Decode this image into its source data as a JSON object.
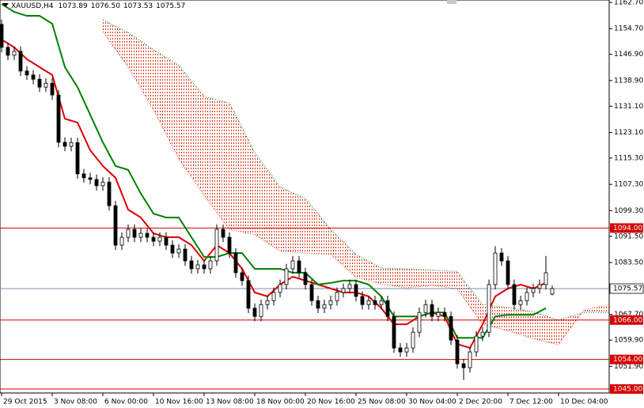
{
  "chart_data": {
    "type": "candlestick",
    "symbol": "XAUUSD,H4",
    "header_values": [
      "1073.89",
      "1076.50",
      "1073.53",
      "1075.57"
    ],
    "open": [
      1156,
      1149,
      1146.6,
      1147.8,
      1141.8,
      1140.6,
      1139.3,
      1136.9,
      1138.1,
      1134.5,
      1120.1,
      1118.9,
      1120,
      1110.5,
      1109.3,
      1108.8,
      1106.9,
      1108,
      1100.8,
      1088.8,
      1091.2,
      1093.6,
      1091.2,
      1092.4,
      1091.2,
      1090,
      1091.2,
      1088.8,
      1086.4,
      1087.6,
      1084,
      1081.6,
      1082.8,
      1081.6,
      1084,
      1093.6,
      1091.2,
      1086.4,
      1080.4,
      1078,
      1069.6,
      1067.1,
      1070.7,
      1071.9,
      1074.4,
      1076.8,
      1081.6,
      1084,
      1080.4,
      1076.8,
      1071.9,
      1069.6,
      1070.7,
      1071.9,
      1074.4,
      1075.6,
      1076.8,
      1073.2,
      1070.7,
      1071.9,
      1070.7,
      1071.9,
      1067.1,
      1057.5,
      1056.3,
      1057.5,
      1062.3,
      1068.3,
      1070.7,
      1067.1,
      1068.3,
      1067.1,
      1059.9,
      1052.7,
      1051.5,
      1056.3,
      1061.1,
      1062.3,
      1076.8,
      1086.4,
      1084,
      1076.8,
      1070.7,
      1071.9,
      1074.4,
      1075.6,
      1076.8,
      1073.89
    ],
    "high": [
      1157.5,
      1150.5,
      1149.3,
      1149.3,
      1143.3,
      1142.1,
      1140.8,
      1139.6,
      1139.6,
      1136,
      1121.6,
      1121.5,
      1121.5,
      1112,
      1110.8,
      1110.3,
      1109.5,
      1109.5,
      1102.3,
      1092.7,
      1095.1,
      1095.1,
      1093.9,
      1093.9,
      1092.7,
      1092.7,
      1092.7,
      1090.3,
      1089.1,
      1089.1,
      1085.5,
      1084.3,
      1084.3,
      1085.5,
      1095.1,
      1095.1,
      1092.7,
      1087.9,
      1081.9,
      1079.5,
      1071.1,
      1072.2,
      1073.4,
      1075.9,
      1078.3,
      1083.1,
      1085.5,
      1085.5,
      1081.9,
      1078.3,
      1073.4,
      1072.2,
      1073.4,
      1075.9,
      1077.1,
      1078.3,
      1078.3,
      1074.7,
      1073.4,
      1073.4,
      1073.4,
      1073.4,
      1068.6,
      1059,
      1059,
      1063.8,
      1069.8,
      1072.2,
      1072.2,
      1069.8,
      1069.8,
      1068.6,
      1061.4,
      1054.2,
      1057.8,
      1062.6,
      1063.8,
      1078.3,
      1088.5,
      1087.9,
      1085.5,
      1078.3,
      1073.4,
      1075.9,
      1077.1,
      1078.3,
      1085.5,
      1076.5
    ],
    "low": [
      1147.5,
      1145.1,
      1145.1,
      1140.3,
      1139.1,
      1137.8,
      1135.4,
      1135.4,
      1133,
      1118.6,
      1117.4,
      1117.4,
      1109,
      1107.8,
      1107.3,
      1105.4,
      1105.4,
      1099.3,
      1087.3,
      1087.3,
      1089.7,
      1089.7,
      1089.7,
      1089.7,
      1088.5,
      1088.5,
      1087.3,
      1084.9,
      1084.9,
      1082.5,
      1080.1,
      1080.1,
      1080.1,
      1080.1,
      1082.5,
      1089.7,
      1084.9,
      1078.9,
      1076.5,
      1068.1,
      1065.6,
      1065.6,
      1069.2,
      1070.4,
      1072.9,
      1075.3,
      1080.1,
      1078.9,
      1075.3,
      1070.4,
      1068.1,
      1068.1,
      1069.2,
      1070.4,
      1072.9,
      1074.1,
      1071.7,
      1069.2,
      1069.2,
      1069.2,
      1069.2,
      1065.6,
      1056,
      1054.8,
      1054.8,
      1056,
      1060.8,
      1066.8,
      1065.6,
      1065.6,
      1065.6,
      1058.4,
      1051.2,
      1047.8,
      1050,
      1054.8,
      1059.6,
      1060.8,
      1075.3,
      1082.5,
      1075.3,
      1069.2,
      1069.2,
      1070.4,
      1072.9,
      1074.1,
      1075.3,
      1073.53
    ],
    "close": [
      1149,
      1146.6,
      1147.8,
      1141.8,
      1140.6,
      1139.3,
      1136.9,
      1138.1,
      1134.5,
      1120.1,
      1118.9,
      1120,
      1110.5,
      1109.3,
      1108.8,
      1106.9,
      1108,
      1100.8,
      1088.8,
      1091.2,
      1093.6,
      1091.2,
      1092.4,
      1091.2,
      1090,
      1091.2,
      1088.8,
      1086.4,
      1087.6,
      1084,
      1081.6,
      1082.8,
      1081.6,
      1084,
      1093.6,
      1091.2,
      1086.4,
      1080.4,
      1078,
      1069.6,
      1067.1,
      1070.7,
      1071.9,
      1074.4,
      1076.8,
      1081.6,
      1084,
      1080.4,
      1076.8,
      1071.9,
      1069.6,
      1070.7,
      1071.9,
      1074.4,
      1075.6,
      1076.8,
      1073.2,
      1070.7,
      1071.9,
      1070.7,
      1071.9,
      1067.1,
      1057.5,
      1056.3,
      1057.5,
      1062.3,
      1068.3,
      1070.7,
      1067.1,
      1068.3,
      1067.1,
      1059.9,
      1052.7,
      1051.5,
      1056.3,
      1061.1,
      1062.3,
      1076.8,
      1086.4,
      1084,
      1076.8,
      1070.7,
      1071.9,
      1074.4,
      1075.6,
      1076.8,
      1080.4,
      1075.57
    ],
    "up_color": "#ffffff",
    "down_color": "#000000",
    "wick_color": "#000000",
    "lines": [
      {
        "color": "#e00000",
        "x": [
          0,
          2,
          4,
          6,
          8,
          10,
          12,
          14,
          16,
          18,
          20,
          22,
          24,
          26,
          28,
          30,
          32,
          34,
          36,
          38,
          40,
          42,
          44,
          46,
          48,
          50,
          52,
          54,
          56,
          58,
          60,
          62,
          64,
          66,
          68,
          70,
          72,
          74,
          76,
          78,
          80,
          82,
          84,
          86
        ],
        "values": [
          1151.4,
          1149,
          1145.4,
          1143,
          1140.6,
          1127.3,
          1126.1,
          1117.7,
          1112.9,
          1109.3,
          1099.6,
          1097.2,
          1092.4,
          1091.2,
          1091.2,
          1088.8,
          1084,
          1088.8,
          1086.4,
          1081.6,
          1074.4,
          1073.2,
          1076.8,
          1079.2,
          1078,
          1076.8,
          1075.6,
          1074.4,
          1074.4,
          1073.2,
          1069.6,
          1064.7,
          1064.7,
          1067.1,
          1068.3,
          1067.1,
          1058.7,
          1057.5,
          1064.7,
          1073.2,
          1075.6,
          1076.8,
          1075.6,
          1077.3
        ]
      },
      {
        "color": "#008000",
        "x": [
          0,
          2,
          4,
          6,
          8,
          10,
          12,
          14,
          16,
          18,
          20,
          22,
          24,
          26,
          28,
          30,
          32,
          34,
          36,
          38,
          40,
          42,
          44,
          46,
          48,
          50,
          52,
          54,
          56,
          58,
          60,
          62,
          64,
          66,
          68,
          70,
          72,
          74,
          76,
          78,
          80,
          82,
          84,
          86
        ],
        "values": [
          1162.2,
          1159.8,
          1158.6,
          1158.6,
          1156.2,
          1143,
          1136.9,
          1128.5,
          1120.1,
          1112.9,
          1111.7,
          1104.5,
          1098.4,
          1097.2,
          1097.2,
          1091.2,
          1085.2,
          1085.2,
          1086.4,
          1086.4,
          1081.6,
          1081.6,
          1081.6,
          1080.4,
          1080.4,
          1076.8,
          1077.3,
          1078,
          1078,
          1076.8,
          1073.2,
          1067.1,
          1067.1,
          1067.1,
          1068.3,
          1068.3,
          1060.6,
          1060.6,
          1060.6,
          1067.1,
          1067.6,
          1067.6,
          1067.6,
          1069.6
        ]
      }
    ],
    "cloud": {
      "x": [
        16,
        20,
        24,
        28,
        32,
        36,
        40,
        44,
        48,
        52,
        56,
        60,
        64,
        68,
        72,
        76,
        80,
        84,
        88,
        92,
        96
      ],
      "span_a": [
        1153.8,
        1143,
        1130,
        1115,
        1104,
        1093.6,
        1092,
        1087,
        1086.4,
        1086,
        1079,
        1077,
        1075.8,
        1076.6,
        1075.5,
        1064.7,
        1062.8,
        1060.3,
        1058.5,
        1069,
        1070.7
      ],
      "span_b": [
        1157.4,
        1153.5,
        1148.3,
        1143.5,
        1134,
        1132.1,
        1117,
        1106.5,
        1103,
        1093.6,
        1086,
        1081.8,
        1081.6,
        1081.2,
        1080.8,
        1070.7,
        1069.8,
        1068.5,
        1066,
        1068.3,
        1068.3
      ],
      "color_a": "#e03010",
      "color_b": "#008000"
    },
    "levels": [
      {
        "value": 1094,
        "label": "1094.00"
      },
      {
        "value": 1066,
        "label": "1066.00"
      },
      {
        "value": 1054,
        "label": "1054.00"
      },
      {
        "value": 1045,
        "label": "1045.00"
      }
    ],
    "level_color": "#d40000",
    "price_line": 1075.57,
    "price_line_color": "#7d8fb5",
    "ylim": [
      1043.8,
      1163.42
    ],
    "yticks": [
      {
        "value": 1162.7,
        "label": "1162.70"
      },
      {
        "value": 1154.7,
        "label": "1154.70"
      },
      {
        "value": 1146.9,
        "label": "1146.90"
      },
      {
        "value": 1138.9,
        "label": "1138.90"
      },
      {
        "value": 1131.1,
        "label": "1131.10"
      },
      {
        "value": 1123.1,
        "label": "1123.10"
      },
      {
        "value": 1115.3,
        "label": "1115.30"
      },
      {
        "value": 1107.3,
        "label": "1107.30"
      },
      {
        "value": 1099.3,
        "label": "1099.30"
      },
      {
        "value": 1091.5,
        "label": "1091.50"
      },
      {
        "value": 1083.5,
        "label": "1083.50"
      },
      {
        "value": 1067.7,
        "label": "1067.70"
      },
      {
        "value": 1059.9,
        "label": "1059.90"
      },
      {
        "value": 1051.9,
        "label": "1051.90"
      }
    ],
    "xlim": [
      -0.25,
      96
    ],
    "xticks": [
      {
        "value": 0,
        "label": "29 Oct 2015"
      },
      {
        "value": 8,
        "label": "3 Nov 08:00"
      },
      {
        "value": 16,
        "label": "6 Nov 00:00"
      },
      {
        "value": 24,
        "label": "10 Nov 16:00"
      },
      {
        "value": 32,
        "label": "13 Nov 08:00"
      },
      {
        "value": 40,
        "label": "18 Nov 00:00"
      },
      {
        "value": 48,
        "label": "20 Nov 16:00"
      },
      {
        "value": 56,
        "label": "25 Nov 08:00"
      },
      {
        "value": 64,
        "label": "30 Nov 04:00"
      },
      {
        "value": 72,
        "label": "2 Dec 20:00"
      },
      {
        "value": 80,
        "label": "7 Dec 12:00"
      },
      {
        "value": 88,
        "label": "10 Dec 04:00"
      }
    ]
  }
}
